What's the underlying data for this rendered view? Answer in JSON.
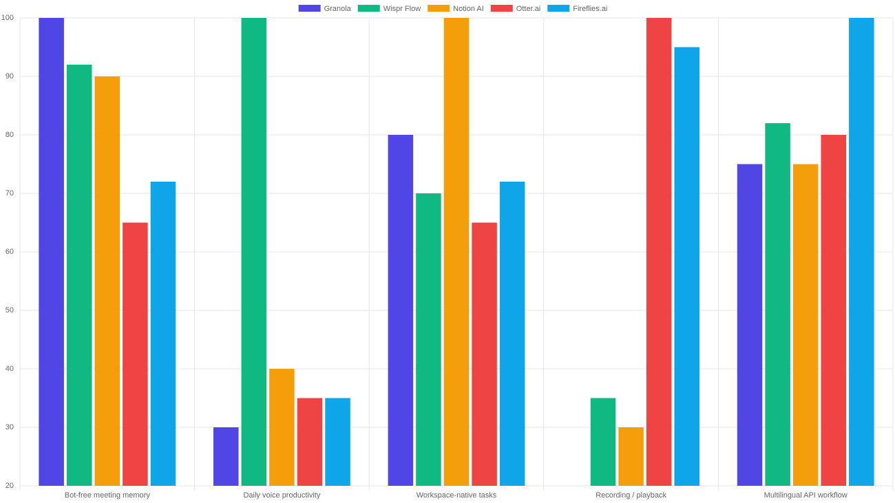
{
  "chart_data": {
    "type": "bar",
    "categories": [
      "Bot-free meeting memory",
      "Daily voice productivity",
      "Workspace-native tasks",
      "Recording / playback",
      "Multilingual API workflow"
    ],
    "series": [
      {
        "name": "Granola",
        "color": "#4f46e5",
        "values": [
          100,
          30,
          80,
          20,
          75
        ]
      },
      {
        "name": "Wispr Flow",
        "color": "#10b981",
        "values": [
          92,
          100,
          70,
          35,
          82
        ]
      },
      {
        "name": "Notion AI",
        "color": "#f59e0b",
        "values": [
          90,
          40,
          100,
          30,
          75
        ]
      },
      {
        "name": "Otter.ai",
        "color": "#ef4444",
        "values": [
          65,
          35,
          65,
          100,
          80
        ]
      },
      {
        "name": "Fireflies.ai",
        "color": "#0ea5e9",
        "values": [
          72,
          35,
          72,
          95,
          100
        ]
      }
    ],
    "ylim": [
      20,
      100
    ],
    "yticks": [
      20,
      30,
      40,
      50,
      60,
      70,
      80,
      90,
      100
    ],
    "grid": true,
    "legend": "top"
  }
}
